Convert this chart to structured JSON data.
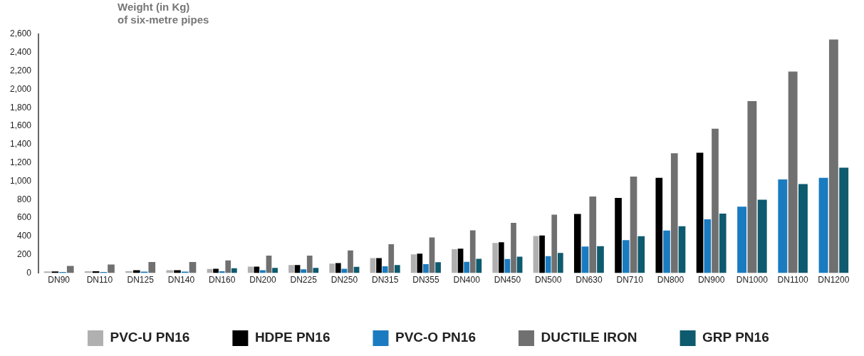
{
  "chart_data": {
    "type": "bar",
    "ylabel": "Weight (in Kg)\nof six-metre pipes",
    "categories": [
      "DN90",
      "DN110",
      "DN125",
      "DN140",
      "DN160",
      "DN200",
      "DN225",
      "DN250",
      "DN315",
      "DN355",
      "DN400",
      "DN450",
      "DN500",
      "DN630",
      "DN710",
      "DN800",
      "DN900",
      "DN1000",
      "DN1100",
      "DN1200"
    ],
    "series": [
      {
        "name": "PVC-U PN16",
        "color": "#b0b0b0",
        "values": [
          18,
          20,
          23,
          32,
          46,
          71,
          87,
          103,
          164,
          205,
          260,
          328,
          404,
          null,
          null,
          null,
          null,
          null,
          null,
          null
        ]
      },
      {
        "name": "HDPE PN16",
        "color": "#000000",
        "values": [
          18,
          20,
          32,
          32,
          48,
          71,
          87,
          110,
          164,
          212,
          267,
          335,
          410,
          643,
          819,
          1037,
          1311,
          null,
          null,
          null
        ]
      },
      {
        "name": "PVC-O PN16",
        "color": "#1a7bc0",
        "values": [
          12,
          12,
          16,
          16,
          21,
          32,
          41,
          48,
          75,
          98,
          123,
          153,
          185,
          290,
          360,
          463,
          586,
          723,
          1019,
          1037
        ]
      },
      {
        "name": "DUCTILE IRON",
        "color": "#707070",
        "values": [
          78,
          94,
          121,
          121,
          139,
          190,
          190,
          246,
          315,
          388,
          465,
          547,
          636,
          834,
          1051,
          1304,
          1571,
          1872,
          2193,
          2542
        ]
      },
      {
        "name": "GRP PN16",
        "color": "#0e5a6e",
        "values": [
          null,
          null,
          null,
          null,
          53,
          57,
          57,
          68,
          87,
          119,
          155,
          178,
          219,
          294,
          401,
          511,
          648,
          798,
          969,
          1147
        ]
      }
    ],
    "ylim": [
      0,
      2600
    ],
    "yticks": [
      {
        "value": 0,
        "label": "0"
      },
      {
        "value": 200,
        "label": "200"
      },
      {
        "value": 400,
        "label": "400"
      },
      {
        "value": 600,
        "label": "600"
      },
      {
        "value": 800,
        "label": "800"
      },
      {
        "value": 1000,
        "label": "1,000"
      },
      {
        "value": 1200,
        "label": "1,200"
      },
      {
        "value": 1400,
        "label": "1,400"
      },
      {
        "value": 1600,
        "label": "1,600"
      },
      {
        "value": 1800,
        "label": "1,800"
      },
      {
        "value": 2000,
        "label": "2,000"
      },
      {
        "value": 2200,
        "label": "2,200"
      },
      {
        "value": 2400,
        "label": "2,400"
      },
      {
        "value": 2600,
        "label": "2,600"
      }
    ],
    "grid": false,
    "legend": "bottom"
  }
}
